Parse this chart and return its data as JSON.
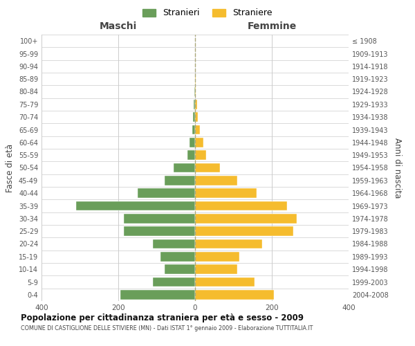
{
  "age_groups": [
    "0-4",
    "5-9",
    "10-14",
    "15-19",
    "20-24",
    "25-29",
    "30-34",
    "35-39",
    "40-44",
    "45-49",
    "50-54",
    "55-59",
    "60-64",
    "65-69",
    "70-74",
    "75-79",
    "80-84",
    "85-89",
    "90-94",
    "95-99",
    "100+"
  ],
  "birth_years": [
    "2004-2008",
    "1999-2003",
    "1994-1998",
    "1989-1993",
    "1984-1988",
    "1979-1983",
    "1974-1978",
    "1969-1973",
    "1964-1968",
    "1959-1963",
    "1954-1958",
    "1949-1953",
    "1944-1948",
    "1939-1943",
    "1934-1938",
    "1929-1933",
    "1924-1928",
    "1919-1923",
    "1914-1918",
    "1909-1913",
    "≤ 1908"
  ],
  "males": [
    195,
    110,
    80,
    90,
    110,
    185,
    185,
    310,
    150,
    80,
    55,
    20,
    15,
    8,
    6,
    4,
    1,
    0,
    0,
    0,
    0
  ],
  "females": [
    205,
    155,
    110,
    115,
    175,
    255,
    265,
    240,
    160,
    110,
    65,
    28,
    22,
    12,
    8,
    5,
    2,
    1,
    0,
    0,
    0
  ],
  "male_color": "#6a9e5a",
  "female_color": "#f5bc2e",
  "background_color": "#ffffff",
  "grid_color": "#cccccc",
  "bar_edge_color": "#ffffff",
  "title": "Popolazione per cittadinanza straniera per età e sesso - 2009",
  "subtitle": "COMUNE DI CASTIGLIONE DELLE STIVIERE (MN) - Dati ISTAT 1° gennaio 2009 - Elaborazione TUTTITALIA.IT",
  "ylabel_left": "Fasce di età",
  "ylabel_right": "Anni di nascita",
  "xlabel_left": "Maschi",
  "xlabel_right": "Femmine",
  "legend_male": "Stranieri",
  "legend_female": "Straniere",
  "xlim": 400,
  "xticks": [
    -400,
    -200,
    0,
    200,
    400
  ],
  "xticklabels": [
    "400",
    "200",
    "0",
    "200",
    "400"
  ]
}
